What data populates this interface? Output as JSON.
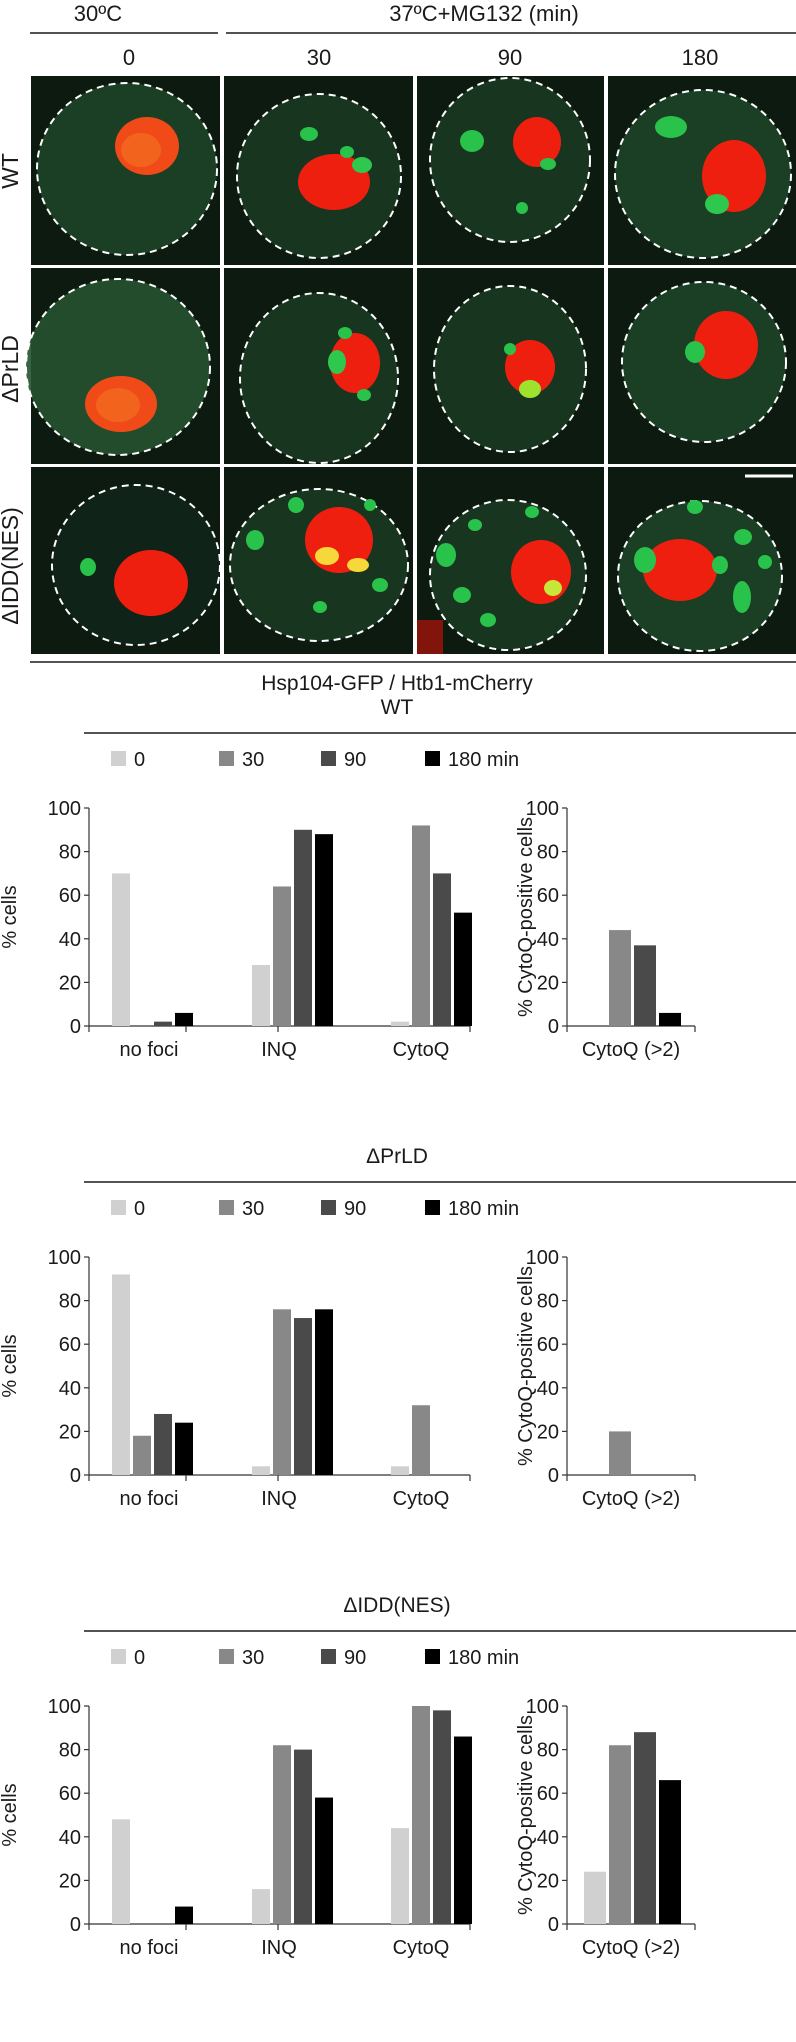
{
  "header": {
    "condition_ctrl": "30ºC",
    "condition_stress": "37ºC+MG132 (min)",
    "timepoints": [
      "0",
      "30",
      "90",
      "180"
    ]
  },
  "rows": [
    {
      "label": "WT"
    },
    {
      "label": "ΔPrLD"
    },
    {
      "label": "ΔIDD(NES)"
    }
  ],
  "caption": "Hsp104-GFP / Htb1-mCherry",
  "colors": {
    "series": [
      "#d0d0d0",
      "#888888",
      "#4a4a4a",
      "#000000"
    ],
    "micro_bg": "#0c1a10",
    "gfp": "#29c24a",
    "mcherry": "#ef1f10"
  },
  "legend": [
    "0",
    "30",
    "90",
    "180 min"
  ],
  "chart_data": [
    {
      "type": "bar",
      "title": "WT",
      "ylabel": "% cells",
      "categories": [
        "no foci",
        "INQ",
        "CytoQ"
      ],
      "ylim": [
        0,
        100
      ],
      "yticks": [
        0,
        20,
        40,
        60,
        80,
        100
      ],
      "series": [
        {
          "name": "0",
          "values": [
            70,
            28,
            2
          ]
        },
        {
          "name": "30",
          "values": [
            0,
            64,
            92
          ]
        },
        {
          "name": "90",
          "values": [
            2,
            90,
            70
          ]
        },
        {
          "name": "180 min",
          "values": [
            6,
            88,
            52
          ]
        }
      ]
    },
    {
      "type": "bar",
      "ylabel": "% CytoQ-positive cells",
      "categories": [
        "CytoQ (>2)"
      ],
      "ylim": [
        0,
        100
      ],
      "yticks": [
        0,
        20,
        40,
        60,
        80,
        100
      ],
      "series": [
        {
          "name": "0",
          "values": [
            0
          ]
        },
        {
          "name": "30",
          "values": [
            44
          ]
        },
        {
          "name": "90",
          "values": [
            37
          ]
        },
        {
          "name": "180 min",
          "values": [
            6
          ]
        }
      ]
    },
    {
      "type": "bar",
      "title": "ΔPrLD",
      "ylabel": "% cells",
      "categories": [
        "no foci",
        "INQ",
        "CytoQ"
      ],
      "ylim": [
        0,
        100
      ],
      "yticks": [
        0,
        20,
        40,
        60,
        80,
        100
      ],
      "series": [
        {
          "name": "0",
          "values": [
            92,
            4,
            4
          ]
        },
        {
          "name": "30",
          "values": [
            18,
            76,
            32
          ]
        },
        {
          "name": "90",
          "values": [
            28,
            72,
            0
          ]
        },
        {
          "name": "180 min",
          "values": [
            24,
            76,
            0
          ]
        }
      ]
    },
    {
      "type": "bar",
      "ylabel": "% CytoQ-positive cells",
      "categories": [
        "CytoQ (>2)"
      ],
      "ylim": [
        0,
        100
      ],
      "yticks": [
        0,
        20,
        40,
        60,
        80,
        100
      ],
      "series": [
        {
          "name": "0",
          "values": [
            0
          ]
        },
        {
          "name": "30",
          "values": [
            20
          ]
        },
        {
          "name": "90",
          "values": [
            0
          ]
        },
        {
          "name": "180 min",
          "values": [
            0
          ]
        }
      ]
    },
    {
      "type": "bar",
      "title": "ΔIDD(NES)",
      "ylabel": "% cells",
      "categories": [
        "no foci",
        "INQ",
        "CytoQ"
      ],
      "ylim": [
        0,
        100
      ],
      "yticks": [
        0,
        20,
        40,
        60,
        80,
        100
      ],
      "series": [
        {
          "name": "0",
          "values": [
            48,
            16,
            44
          ]
        },
        {
          "name": "30",
          "values": [
            0,
            82,
            100
          ]
        },
        {
          "name": "90",
          "values": [
            0,
            80,
            98
          ]
        },
        {
          "name": "180 min",
          "values": [
            8,
            58,
            86
          ]
        }
      ]
    },
    {
      "type": "bar",
      "ylabel": "% CytoQ-positive cells",
      "categories": [
        "CytoQ (>2)"
      ],
      "ylim": [
        0,
        100
      ],
      "yticks": [
        0,
        20,
        40,
        60,
        80,
        100
      ],
      "series": [
        {
          "name": "0",
          "values": [
            24
          ]
        },
        {
          "name": "30",
          "values": [
            82
          ]
        },
        {
          "name": "90",
          "values": [
            88
          ]
        },
        {
          "name": "180 min",
          "values": [
            66
          ]
        }
      ]
    }
  ]
}
